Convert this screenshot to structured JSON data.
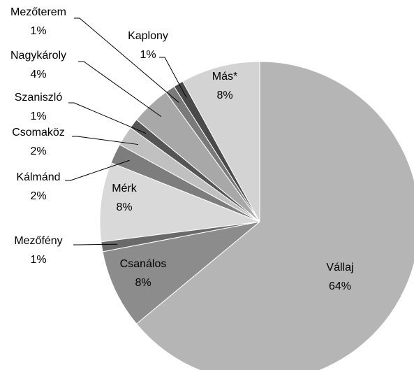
{
  "chart_data": {
    "type": "pie",
    "categories": [
      "Vállaj",
      "Csanálos",
      "Mezőfény",
      "Mérk",
      "Kálmánd",
      "Csomaköz",
      "Szaniszló",
      "Nagykároly",
      "Mezőterem",
      "Kaplony",
      "Más*"
    ],
    "values": [
      64,
      8,
      1,
      8,
      2,
      2,
      1,
      4,
      1,
      1,
      8
    ],
    "value_labels": [
      "64%",
      "8%",
      "1%",
      "8%",
      "2%",
      "2%",
      "1%",
      "4%",
      "1%",
      "1%",
      "8%"
    ],
    "colors": [
      "#b5b5b5",
      "#8c8c8c",
      "#6a6a6a",
      "#d9d9d9",
      "#7d7d7d",
      "#c0c0c0",
      "#555555",
      "#a8a8a8",
      "#7a7a7a",
      "#4a4a4a",
      "#d3d3d3"
    ]
  }
}
